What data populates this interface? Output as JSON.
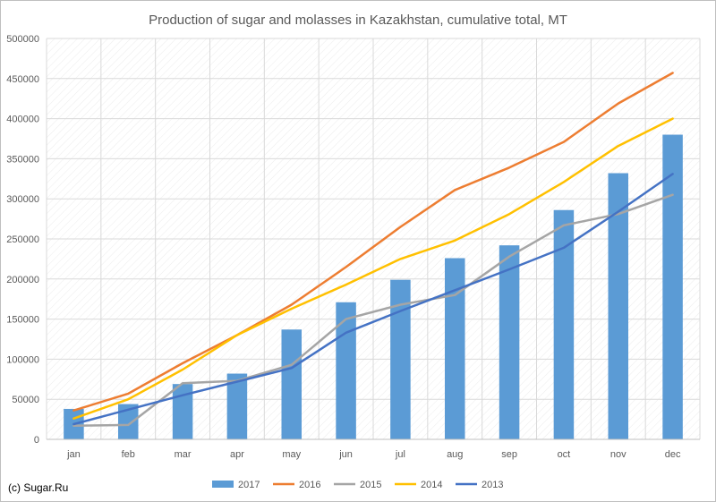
{
  "chart_data": {
    "type": "bar",
    "title": "Production of sugar and molasses in Kazakhstan, cumulative total, MT",
    "categories": [
      "jan",
      "feb",
      "mar",
      "apr",
      "may",
      "jun",
      "jul",
      "aug",
      "sep",
      "oct",
      "nov",
      "dec"
    ],
    "ylim": [
      0,
      500000
    ],
    "yticks": [
      "0",
      "50000",
      "100000",
      "150000",
      "200000",
      "250000",
      "300000",
      "350000",
      "400000",
      "450000",
      "500000"
    ],
    "grid": true,
    "legend_position": "bottom",
    "bars": {
      "name": "2017",
      "color": "#5b9bd5",
      "values": [
        38000,
        44000,
        69000,
        82000,
        137000,
        171000,
        199000,
        226000,
        242000,
        286000,
        332000,
        380000
      ]
    },
    "series": [
      {
        "name": "2016",
        "color": "#ed7d31",
        "values": [
          36000,
          57000,
          95000,
          130000,
          168000,
          215000,
          265000,
          311000,
          339000,
          371000,
          419000,
          457000
        ]
      },
      {
        "name": "2015",
        "color": "#a5a5a5",
        "values": [
          17000,
          18000,
          70000,
          73000,
          93000,
          150000,
          168000,
          180000,
          228000,
          267000,
          281000,
          305000
        ]
      },
      {
        "name": "2014",
        "color": "#ffc000",
        "values": [
          26000,
          50000,
          87000,
          130000,
          163000,
          193000,
          225000,
          248000,
          281000,
          321000,
          366000,
          400000
        ]
      },
      {
        "name": "2013",
        "color": "#4472c4",
        "values": [
          19000,
          37000,
          55000,
          72000,
          89000,
          133000,
          160000,
          186000,
          212000,
          239000,
          284000,
          331000
        ]
      }
    ]
  },
  "credit": "(c) Sugar.Ru"
}
